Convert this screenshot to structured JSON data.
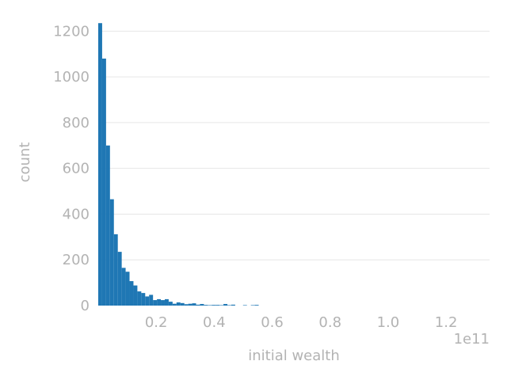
{
  "chart_data": {
    "type": "histogram",
    "title": "",
    "xlabel": "initial wealth",
    "ylabel": "count",
    "x_offset_label": "1e11",
    "xlim": [
      0,
      1.35
    ],
    "ylim": [
      0,
      1260
    ],
    "x_unit_scale": "1e11",
    "grid": "horizontal",
    "bar_color": "#1f77b4",
    "bin_width": 0.0135,
    "bins": [
      {
        "x0": 0.0,
        "count": 1235
      },
      {
        "x0": 0.0135,
        "count": 1080
      },
      {
        "x0": 0.027,
        "count": 700
      },
      {
        "x0": 0.0405,
        "count": 465
      },
      {
        "x0": 0.054,
        "count": 312
      },
      {
        "x0": 0.0675,
        "count": 235
      },
      {
        "x0": 0.081,
        "count": 165
      },
      {
        "x0": 0.0945,
        "count": 148
      },
      {
        "x0": 0.108,
        "count": 107
      },
      {
        "x0": 0.1215,
        "count": 88
      },
      {
        "x0": 0.135,
        "count": 62
      },
      {
        "x0": 0.1485,
        "count": 55
      },
      {
        "x0": 0.162,
        "count": 40
      },
      {
        "x0": 0.1755,
        "count": 47
      },
      {
        "x0": 0.189,
        "count": 24
      },
      {
        "x0": 0.2025,
        "count": 28
      },
      {
        "x0": 0.216,
        "count": 24
      },
      {
        "x0": 0.2295,
        "count": 28
      },
      {
        "x0": 0.243,
        "count": 17
      },
      {
        "x0": 0.2565,
        "count": 8
      },
      {
        "x0": 0.27,
        "count": 14
      },
      {
        "x0": 0.2835,
        "count": 11
      },
      {
        "x0": 0.297,
        "count": 6
      },
      {
        "x0": 0.3105,
        "count": 8
      },
      {
        "x0": 0.324,
        "count": 10
      },
      {
        "x0": 0.3375,
        "count": 4
      },
      {
        "x0": 0.351,
        "count": 7
      },
      {
        "x0": 0.3645,
        "count": 3
      },
      {
        "x0": 0.378,
        "count": 2
      },
      {
        "x0": 0.3915,
        "count": 3
      },
      {
        "x0": 0.405,
        "count": 3
      },
      {
        "x0": 0.4185,
        "count": 2
      },
      {
        "x0": 0.432,
        "count": 7
      },
      {
        "x0": 0.4455,
        "count": 2
      },
      {
        "x0": 0.459,
        "count": 4
      },
      {
        "x0": 0.4995,
        "count": 2
      },
      {
        "x0": 0.5265,
        "count": 2
      },
      {
        "x0": 0.54,
        "count": 3
      }
    ],
    "x_ticks": [
      {
        "value": 0.2,
        "label": "0.2"
      },
      {
        "value": 0.4,
        "label": "0.4"
      },
      {
        "value": 0.6,
        "label": "0.6"
      },
      {
        "value": 0.8,
        "label": "0.8"
      },
      {
        "value": 1.0,
        "label": "1.0"
      },
      {
        "value": 1.2,
        "label": "1.2"
      }
    ],
    "y_ticks": [
      {
        "value": 0,
        "label": "0"
      },
      {
        "value": 200,
        "label": "200"
      },
      {
        "value": 400,
        "label": "400"
      },
      {
        "value": 600,
        "label": "600"
      },
      {
        "value": 800,
        "label": "800"
      },
      {
        "value": 1000,
        "label": "1000"
      },
      {
        "value": 1200,
        "label": "1200"
      }
    ]
  }
}
